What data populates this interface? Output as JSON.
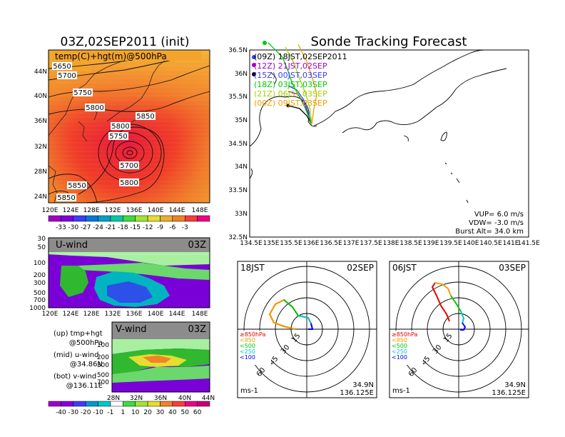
{
  "left_title": "03Z,02SEP2011 (init)",
  "main_title": "Sonde Tracking Forecast",
  "temp_map": {
    "label": "temp(C)+hgt(m)@500hPa",
    "lat_labels": [
      "44N",
      "40N",
      "36N",
      "32N",
      "28N",
      "24N"
    ],
    "lon_labels": [
      "120E",
      "124E",
      "128E",
      "132E",
      "136E",
      "140E",
      "144E",
      "148E"
    ],
    "height_labels": [
      "5650",
      "5700",
      "5750",
      "5800",
      "5850",
      "5800",
      "5750",
      "5700",
      "5800",
      "5850",
      "5850"
    ],
    "colorbar_labels": [
      "-33",
      "-30",
      "-27",
      "-24",
      "-21",
      "-18",
      "-15",
      "-12",
      "-9",
      "-6",
      "-3"
    ],
    "colorbar_colors": [
      "#a000c8",
      "#8200dc",
      "#3c3cff",
      "#0078dc",
      "#00a0c8",
      "#00c8a0",
      "#3cdc3c",
      "#a0e632",
      "#e6dc32",
      "#e6af2d",
      "#f08228",
      "#fa3c3c",
      "#f00082"
    ]
  },
  "u_wind": {
    "title": "U-wind",
    "time": "03Z",
    "p_labels": [
      "30",
      "50",
      "100",
      "200",
      "300",
      "500",
      "700",
      "1000"
    ],
    "lon_labels": [
      "120E",
      "124E",
      "128E",
      "132E",
      "136E",
      "140E",
      "144E",
      "148E"
    ]
  },
  "v_wind": {
    "title": "V-wind",
    "time": "03Z",
    "p_labels": [
      "100",
      "200",
      "300",
      "500",
      "700"
    ],
    "lat_labels": [
      "28N",
      "32N",
      "36N",
      "40N",
      "44N"
    ]
  },
  "legend_notes": [
    {
      "line1": "(up)  tmp+hgt",
      "line2": "@500hPa"
    },
    {
      "line1": "(mid)  u-wind",
      "line2": "@34.86N"
    },
    {
      "line1": "(bot)  v-wind",
      "line2": "@136.11E"
    }
  ],
  "wind_colorbar": {
    "labels": [
      "-40",
      "-30",
      "-20",
      "-10",
      "-1",
      "1",
      "10",
      "20",
      "30",
      "40",
      "50",
      "60"
    ],
    "colors": [
      "#a000c8",
      "#8200dc",
      "#3c3cff",
      "#0096d2",
      "#00c8c8",
      "#ffffff",
      "#3cdc3c",
      "#a0e632",
      "#e6dc32",
      "#f08228",
      "#fa3c3c",
      "#f00082",
      "#c80078"
    ]
  },
  "track_map": {
    "lat_labels": [
      "36.5N",
      "36N",
      "35.5N",
      "35N",
      "34.5N",
      "34N",
      "33.5N",
      "33N",
      "32.5N"
    ],
    "lon_labels": [
      "134.5E",
      "135E",
      "135.5E",
      "136E",
      "136.5E",
      "137E",
      "137.5E",
      "138E",
      "138.5E",
      "139E",
      "139.5E",
      "140E",
      "140.5E",
      "141E",
      "141.5E"
    ],
    "legend": [
      {
        "label": "(09Z) 18JST,02SEP2011",
        "color": "#000000"
      },
      {
        "label": "(12Z) 21JST,02SEP",
        "color": "#a000c8"
      },
      {
        "label": "(15Z) 00JST,03SEP",
        "color": "#3c3cff"
      },
      {
        "label": "(18Z) 03JST,03SEP",
        "color": "#00c800"
      },
      {
        "label": "(21Z) 06JST,03SEP",
        "color": "#a0d200"
      },
      {
        "label": "(00Z) 09JST,03SEP",
        "color": "#f0a000"
      }
    ],
    "vup": "VUP=  6.0  m/s",
    "vdw": "VDW= -3.0  m/s",
    "burst": "Burst Alt=  34.0  km"
  },
  "hodo_left": {
    "time": "18JST",
    "date": "02SEP",
    "ring_labels": [
      "15",
      "30",
      "45",
      "60"
    ],
    "levels": [
      "≥850hPa",
      "<850",
      "<500",
      "<250",
      "<100"
    ],
    "level_colors": [
      "#e60000",
      "#f0a000",
      "#00c800",
      "#00c8c8",
      "#0000ff"
    ],
    "unit": "ms-1",
    "lat": "34.9N",
    "lon": "136.125E"
  },
  "hodo_right": {
    "time": "06JST",
    "date": "03SEP",
    "ring_labels": [
      "15",
      "30",
      "45",
      "60"
    ],
    "levels": [
      "≥850hPa",
      "<850",
      "<500",
      "<250",
      "<100"
    ],
    "level_colors": [
      "#e60000",
      "#f0a000",
      "#00c800",
      "#00c8c8",
      "#0000ff"
    ],
    "unit": "ms-1",
    "lat": "34.9N",
    "lon": "136.125E"
  }
}
